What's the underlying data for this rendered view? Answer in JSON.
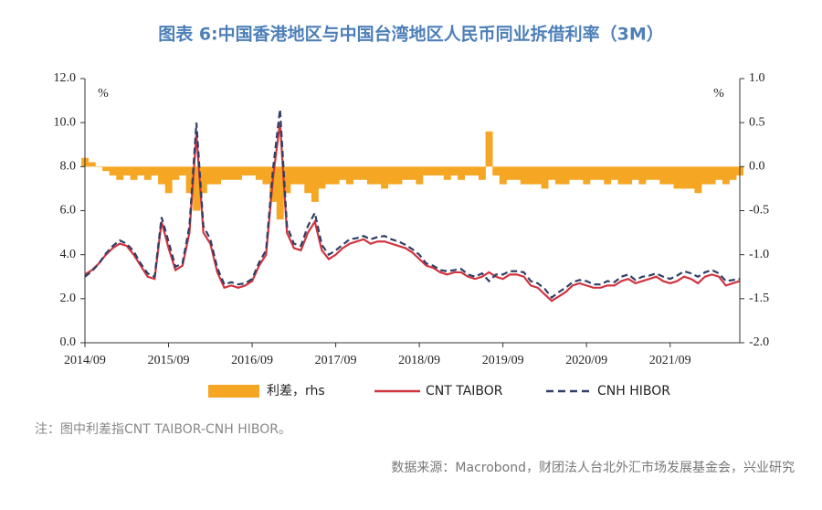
{
  "chart_data": {
    "type": "line",
    "title": "图表 6:中国香港地区与中国台湾地区人民币同业拆借利率（3M）",
    "note": "注：图中利差指CNT TAIBOR-CNH HIBOR。",
    "source": "数据来源：Macrobond，财团法人台北外汇市场发展基金会，兴业研究",
    "y_unit": "%",
    "y2_unit": "%",
    "x": [
      "2014/09",
      "2014/10",
      "2014/11",
      "2014/12",
      "2015/01",
      "2015/02",
      "2015/03",
      "2015/04",
      "2015/05",
      "2015/06",
      "2015/07",
      "2015/08",
      "2015/09",
      "2015/10",
      "2015/11",
      "2015/12",
      "2016/01",
      "2016/02",
      "2016/03",
      "2016/04",
      "2016/05",
      "2016/06",
      "2016/07",
      "2016/08",
      "2016/09",
      "2016/10",
      "2016/11",
      "2016/12",
      "2017/01",
      "2017/02",
      "2017/03",
      "2017/04",
      "2017/05",
      "2017/06",
      "2017/07",
      "2017/08",
      "2017/09",
      "2017/10",
      "2017/11",
      "2017/12",
      "2018/01",
      "2018/02",
      "2018/03",
      "2018/04",
      "2018/05",
      "2018/06",
      "2018/07",
      "2018/08",
      "2018/09",
      "2018/10",
      "2018/11",
      "2018/12",
      "2019/01",
      "2019/02",
      "2019/03",
      "2019/04",
      "2019/05",
      "2019/06",
      "2019/07",
      "2019/08",
      "2019/09",
      "2019/10",
      "2019/11",
      "2019/12",
      "2020/01",
      "2020/02",
      "2020/03",
      "2020/04",
      "2020/05",
      "2020/06",
      "2020/07",
      "2020/08",
      "2020/09",
      "2020/10",
      "2020/11",
      "2020/12",
      "2021/01",
      "2021/02",
      "2021/03",
      "2021/04",
      "2021/05",
      "2021/06",
      "2021/07",
      "2021/08",
      "2021/09",
      "2021/10",
      "2021/11",
      "2021/12",
      "2022/01",
      "2022/02",
      "2022/03",
      "2022/04",
      "2022/05",
      "2022/06",
      "2022/07"
    ],
    "xticks": [
      "2014/09",
      "2015/09",
      "2016/09",
      "2017/09",
      "2018/09",
      "2019/09",
      "2020/09",
      "2021/09"
    ],
    "ylim": [
      0,
      12
    ],
    "yticks": [
      {
        "value": 0,
        "label": "0.0"
      },
      {
        "value": 2,
        "label": "2.0"
      },
      {
        "value": 4,
        "label": "4.0"
      },
      {
        "value": 6,
        "label": "6.0"
      },
      {
        "value": 8,
        "label": "8.0"
      },
      {
        "value": 10,
        "label": "10.0"
      },
      {
        "value": 12,
        "label": "12.0"
      }
    ],
    "y2lim": [
      -2,
      1
    ],
    "y2ticks": [
      {
        "value": -2,
        "label": "-2.0"
      },
      {
        "value": -1.5,
        "label": "-1.5"
      },
      {
        "value": -1,
        "label": "-1.0"
      },
      {
        "value": -0.5,
        "label": "-0.5"
      },
      {
        "value": 0,
        "label": "0.0"
      },
      {
        "value": 0.5,
        "label": "0.5"
      },
      {
        "value": 1,
        "label": "1.0"
      }
    ],
    "series": [
      {
        "name": "利差，rhs",
        "type": "bar",
        "axis": "y2",
        "color": "#f5a623",
        "values": [
          0.1,
          0.05,
          0.0,
          -0.05,
          -0.1,
          -0.15,
          -0.1,
          -0.15,
          -0.1,
          -0.15,
          -0.1,
          -0.2,
          -0.3,
          -0.15,
          -0.1,
          -0.3,
          -0.5,
          -0.3,
          -0.2,
          -0.2,
          -0.15,
          -0.15,
          -0.15,
          -0.1,
          -0.1,
          -0.15,
          -0.2,
          -0.4,
          -0.6,
          -0.3,
          -0.2,
          -0.2,
          -0.3,
          -0.4,
          -0.25,
          -0.2,
          -0.2,
          -0.15,
          -0.2,
          -0.15,
          -0.15,
          -0.2,
          -0.2,
          -0.25,
          -0.2,
          -0.2,
          -0.15,
          -0.15,
          -0.2,
          -0.1,
          -0.1,
          -0.1,
          -0.15,
          -0.1,
          -0.15,
          -0.1,
          -0.1,
          -0.15,
          0.4,
          -0.1,
          -0.2,
          -0.15,
          -0.15,
          -0.2,
          -0.2,
          -0.2,
          -0.25,
          -0.15,
          -0.2,
          -0.2,
          -0.15,
          -0.15,
          -0.2,
          -0.15,
          -0.15,
          -0.2,
          -0.15,
          -0.2,
          -0.2,
          -0.15,
          -0.2,
          -0.15,
          -0.15,
          -0.2,
          -0.2,
          -0.25,
          -0.25,
          -0.25,
          -0.3,
          -0.2,
          -0.2,
          -0.15,
          -0.2,
          -0.15,
          -0.1
        ]
      },
      {
        "name": "CNT TAIBOR",
        "type": "line",
        "color": "#d0343f",
        "values": [
          3.1,
          3.3,
          3.6,
          4.0,
          4.3,
          4.5,
          4.4,
          4.0,
          3.5,
          3.0,
          2.9,
          5.5,
          4.3,
          3.3,
          3.5,
          5.0,
          9.5,
          5.0,
          4.5,
          3.2,
          2.5,
          2.6,
          2.5,
          2.6,
          2.8,
          3.5,
          4.0,
          7.5,
          10.0,
          5.0,
          4.3,
          4.2,
          5.0,
          5.5,
          4.2,
          3.8,
          4.0,
          4.3,
          4.5,
          4.6,
          4.7,
          4.5,
          4.6,
          4.6,
          4.5,
          4.4,
          4.3,
          4.1,
          3.8,
          3.5,
          3.4,
          3.2,
          3.1,
          3.2,
          3.2,
          3.0,
          2.9,
          3.0,
          3.2,
          3.0,
          2.9,
          3.1,
          3.1,
          3.0,
          2.6,
          2.5,
          2.2,
          1.9,
          2.1,
          2.3,
          2.6,
          2.7,
          2.6,
          2.5,
          2.5,
          2.6,
          2.6,
          2.8,
          2.9,
          2.7,
          2.8,
          2.9,
          3.0,
          2.8,
          2.7,
          2.8,
          3.0,
          2.9,
          2.7,
          3.0,
          3.1,
          3.0,
          2.6,
          2.7,
          2.8
        ]
      },
      {
        "name": "CNH HIBOR",
        "type": "line",
        "dashed": true,
        "color": "#2f3f66",
        "values": [
          3.0,
          3.25,
          3.6,
          4.05,
          4.4,
          4.65,
          4.5,
          4.15,
          3.6,
          3.15,
          3.0,
          5.7,
          4.6,
          3.45,
          3.6,
          5.3,
          10.0,
          5.3,
          4.7,
          3.4,
          2.65,
          2.75,
          2.65,
          2.7,
          2.9,
          3.65,
          4.2,
          7.9,
          10.6,
          5.3,
          4.5,
          4.4,
          5.3,
          5.9,
          4.45,
          4.0,
          4.2,
          4.45,
          4.7,
          4.75,
          4.85,
          4.7,
          4.8,
          4.85,
          4.7,
          4.6,
          4.45,
          4.25,
          4.0,
          3.6,
          3.5,
          3.3,
          3.25,
          3.3,
          3.35,
          3.1,
          3.0,
          3.15,
          2.8,
          3.1,
          3.1,
          3.25,
          3.25,
          3.2,
          2.8,
          2.7,
          2.45,
          2.05,
          2.3,
          2.5,
          2.75,
          2.85,
          2.8,
          2.65,
          2.65,
          2.8,
          2.75,
          3.0,
          3.1,
          2.85,
          3.0,
          3.05,
          3.15,
          3.0,
          2.9,
          3.05,
          3.25,
          3.15,
          3.0,
          3.2,
          3.3,
          3.15,
          2.8,
          2.85,
          2.9
        ]
      }
    ]
  }
}
